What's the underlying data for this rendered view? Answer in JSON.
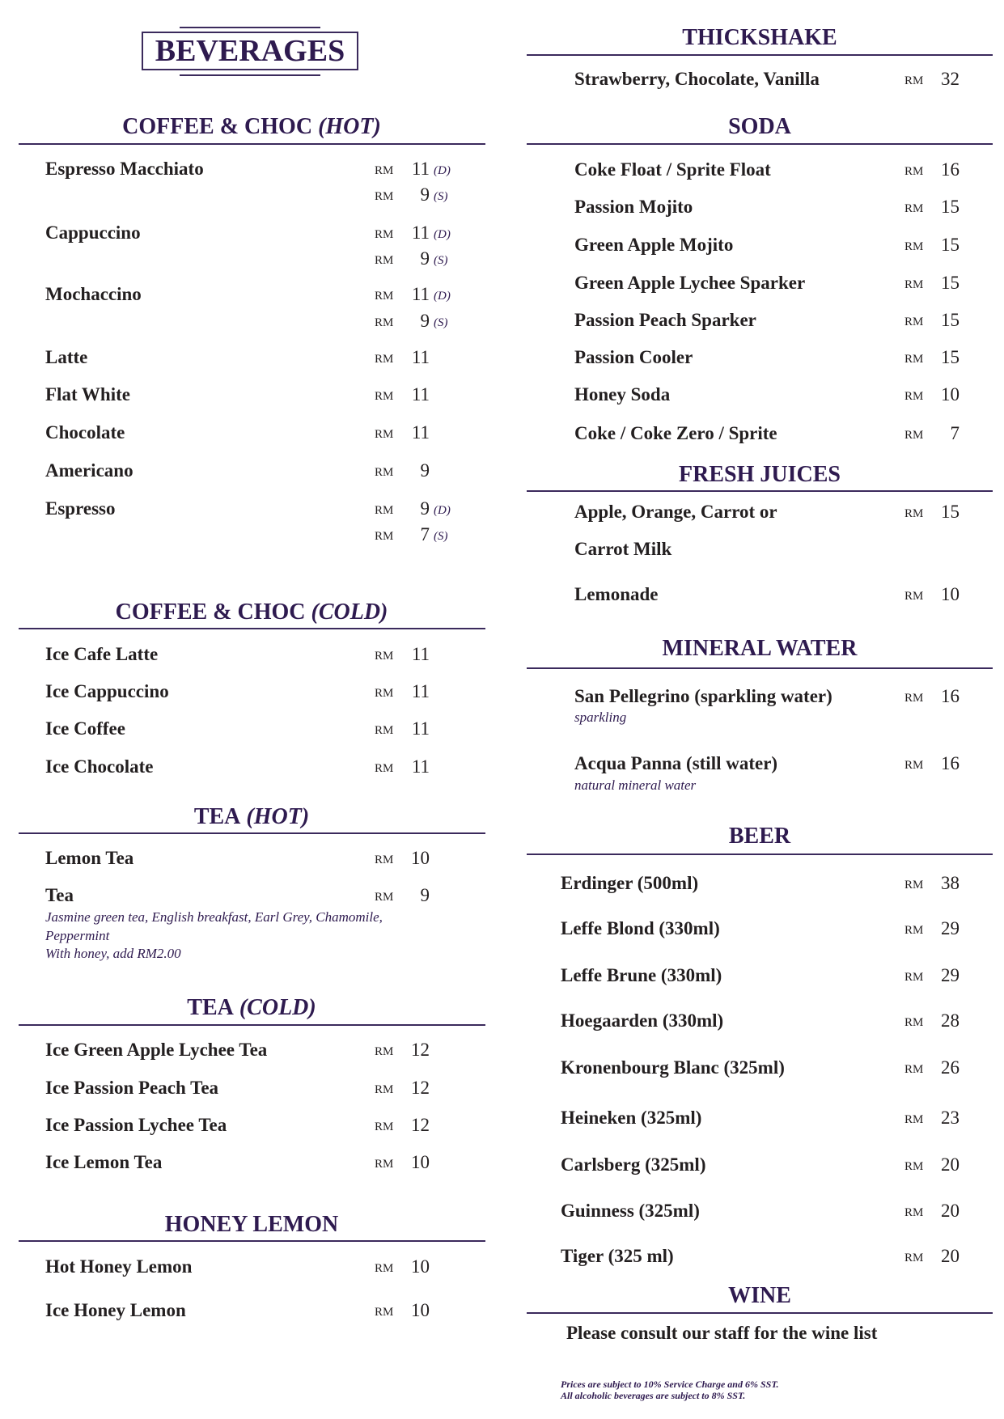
{
  "title": "BEVERAGES",
  "currency": "RM",
  "colors": {
    "accent": "#2e1a4f",
    "text": "#231f20"
  },
  "left_sections": [
    {
      "title": "COFFEE & CHOC",
      "suffix": "(HOT)",
      "items": [
        {
          "name": "Espresso Macchiato",
          "prices": [
            {
              "amount": "11",
              "size": "(D)"
            },
            {
              "amount": "9",
              "size": "(S)"
            }
          ]
        },
        {
          "name": "Cappuccino",
          "prices": [
            {
              "amount": "11",
              "size": "(D)"
            },
            {
              "amount": "9",
              "size": "(S)"
            }
          ]
        },
        {
          "name": "Mochaccino",
          "prices": [
            {
              "amount": "11",
              "size": "(D)"
            },
            {
              "amount": "9",
              "size": "(S)"
            }
          ]
        },
        {
          "name": "Latte",
          "prices": [
            {
              "amount": "11"
            }
          ]
        },
        {
          "name": "Flat White",
          "prices": [
            {
              "amount": "11"
            }
          ]
        },
        {
          "name": "Chocolate",
          "prices": [
            {
              "amount": "11"
            }
          ]
        },
        {
          "name": "Americano",
          "prices": [
            {
              "amount": "9"
            }
          ]
        },
        {
          "name": "Espresso",
          "prices": [
            {
              "amount": "9",
              "size": "(D)"
            },
            {
              "amount": "7",
              "size": "(S)"
            }
          ]
        }
      ]
    },
    {
      "title": "COFFEE & CHOC",
      "suffix": "(COLD)",
      "items": [
        {
          "name": "Ice Cafe Latte",
          "prices": [
            {
              "amount": "11"
            }
          ]
        },
        {
          "name": "Ice Cappuccino",
          "prices": [
            {
              "amount": "11"
            }
          ]
        },
        {
          "name": "Ice Coffee",
          "prices": [
            {
              "amount": "11"
            }
          ]
        },
        {
          "name": "Ice Chocolate",
          "prices": [
            {
              "amount": "11"
            }
          ]
        }
      ]
    },
    {
      "title": "TEA",
      "suffix": "(HOT)",
      "items": [
        {
          "name": "Lemon Tea",
          "prices": [
            {
              "amount": "10"
            }
          ]
        },
        {
          "name": "Tea",
          "prices": [
            {
              "amount": "9"
            }
          ],
          "desc": [
            "Jasmine green tea, English breakfast, Earl Grey, Chamomile,",
            "Peppermint",
            "With honey, add RM2.00"
          ]
        }
      ]
    },
    {
      "title": "TEA",
      "suffix": "(COLD)",
      "items": [
        {
          "name": "Ice Green Apple Lychee Tea",
          "prices": [
            {
              "amount": "12"
            }
          ]
        },
        {
          "name": "Ice Passion Peach Tea",
          "prices": [
            {
              "amount": "12"
            }
          ]
        },
        {
          "name": "Ice Passion Lychee Tea",
          "prices": [
            {
              "amount": "12"
            }
          ]
        },
        {
          "name": "Ice Lemon Tea",
          "prices": [
            {
              "amount": "10"
            }
          ]
        }
      ]
    },
    {
      "title": "HONEY LEMON",
      "suffix": "",
      "items": [
        {
          "name": "Hot Honey Lemon",
          "prices": [
            {
              "amount": "10"
            }
          ]
        },
        {
          "name": "Ice Honey Lemon",
          "prices": [
            {
              "amount": "10"
            }
          ]
        }
      ]
    }
  ],
  "right_sections": [
    {
      "title": "THICKSHAKE",
      "suffix": "",
      "items": [
        {
          "name": "Strawberry, Chocolate, Vanilla",
          "prices": [
            {
              "amount": "32"
            }
          ]
        }
      ]
    },
    {
      "title": "SODA",
      "suffix": "",
      "items": [
        {
          "name": "Coke Float / Sprite Float",
          "prices": [
            {
              "amount": "16"
            }
          ]
        },
        {
          "name": "Passion Mojito",
          "prices": [
            {
              "amount": "15"
            }
          ]
        },
        {
          "name": "Green Apple Mojito",
          "prices": [
            {
              "amount": "15"
            }
          ]
        },
        {
          "name": "Green Apple Lychee Sparker",
          "prices": [
            {
              "amount": "15"
            }
          ]
        },
        {
          "name": "Passion Peach Sparker",
          "prices": [
            {
              "amount": "15"
            }
          ]
        },
        {
          "name": "Passion Cooler",
          "prices": [
            {
              "amount": "15"
            }
          ]
        },
        {
          "name": "Honey Soda",
          "prices": [
            {
              "amount": "10"
            }
          ]
        },
        {
          "name": "Coke / Coke Zero / Sprite",
          "prices": [
            {
              "amount": "7"
            }
          ]
        }
      ]
    },
    {
      "title": "FRESH JUICES",
      "suffix": "",
      "items": [
        {
          "name": "Apple, Orange, Carrot or",
          "name2": "Carrot Milk",
          "prices": [
            {
              "amount": "15"
            }
          ]
        },
        {
          "name": "Lemonade",
          "prices": [
            {
              "amount": "10"
            }
          ]
        }
      ]
    },
    {
      "title": "MINERAL WATER",
      "suffix": "",
      "items": [
        {
          "name": "San Pellegrino (sparkling water)",
          "prices": [
            {
              "amount": "16"
            }
          ],
          "desc": [
            "sparkling"
          ]
        },
        {
          "name": "Acqua Panna (still water)",
          "prices": [
            {
              "amount": "16"
            }
          ],
          "desc": [
            "natural mineral water"
          ]
        }
      ]
    },
    {
      "title": "BEER",
      "suffix": "",
      "items": [
        {
          "name": "Erdinger (500ml)",
          "prices": [
            {
              "amount": "38"
            }
          ]
        },
        {
          "name": "Leffe Blond (330ml)",
          "prices": [
            {
              "amount": "29"
            }
          ]
        },
        {
          "name": "Leffe Brune (330ml)",
          "prices": [
            {
              "amount": "29"
            }
          ]
        },
        {
          "name": "Hoegaarden (330ml)",
          "prices": [
            {
              "amount": "28"
            }
          ]
        },
        {
          "name": "Kronenbourg Blanc (325ml)",
          "prices": [
            {
              "amount": "26"
            }
          ]
        },
        {
          "name": "Heineken (325ml)",
          "prices": [
            {
              "amount": "23"
            }
          ]
        },
        {
          "name": "Carlsberg (325ml)",
          "prices": [
            {
              "amount": "20"
            }
          ]
        },
        {
          "name": "Guinness (325ml)",
          "prices": [
            {
              "amount": "20"
            }
          ]
        },
        {
          "name": "Tiger (325 ml)",
          "prices": [
            {
              "amount": "20"
            }
          ]
        }
      ]
    },
    {
      "title": "WINE",
      "suffix": "",
      "items": []
    }
  ],
  "wine_note": "Please consult our staff for the wine list",
  "footer": [
    "Prices are subject to 10% Service Charge and 6% SST.",
    "All alcoholic beverages are subject to 8% SST."
  ]
}
